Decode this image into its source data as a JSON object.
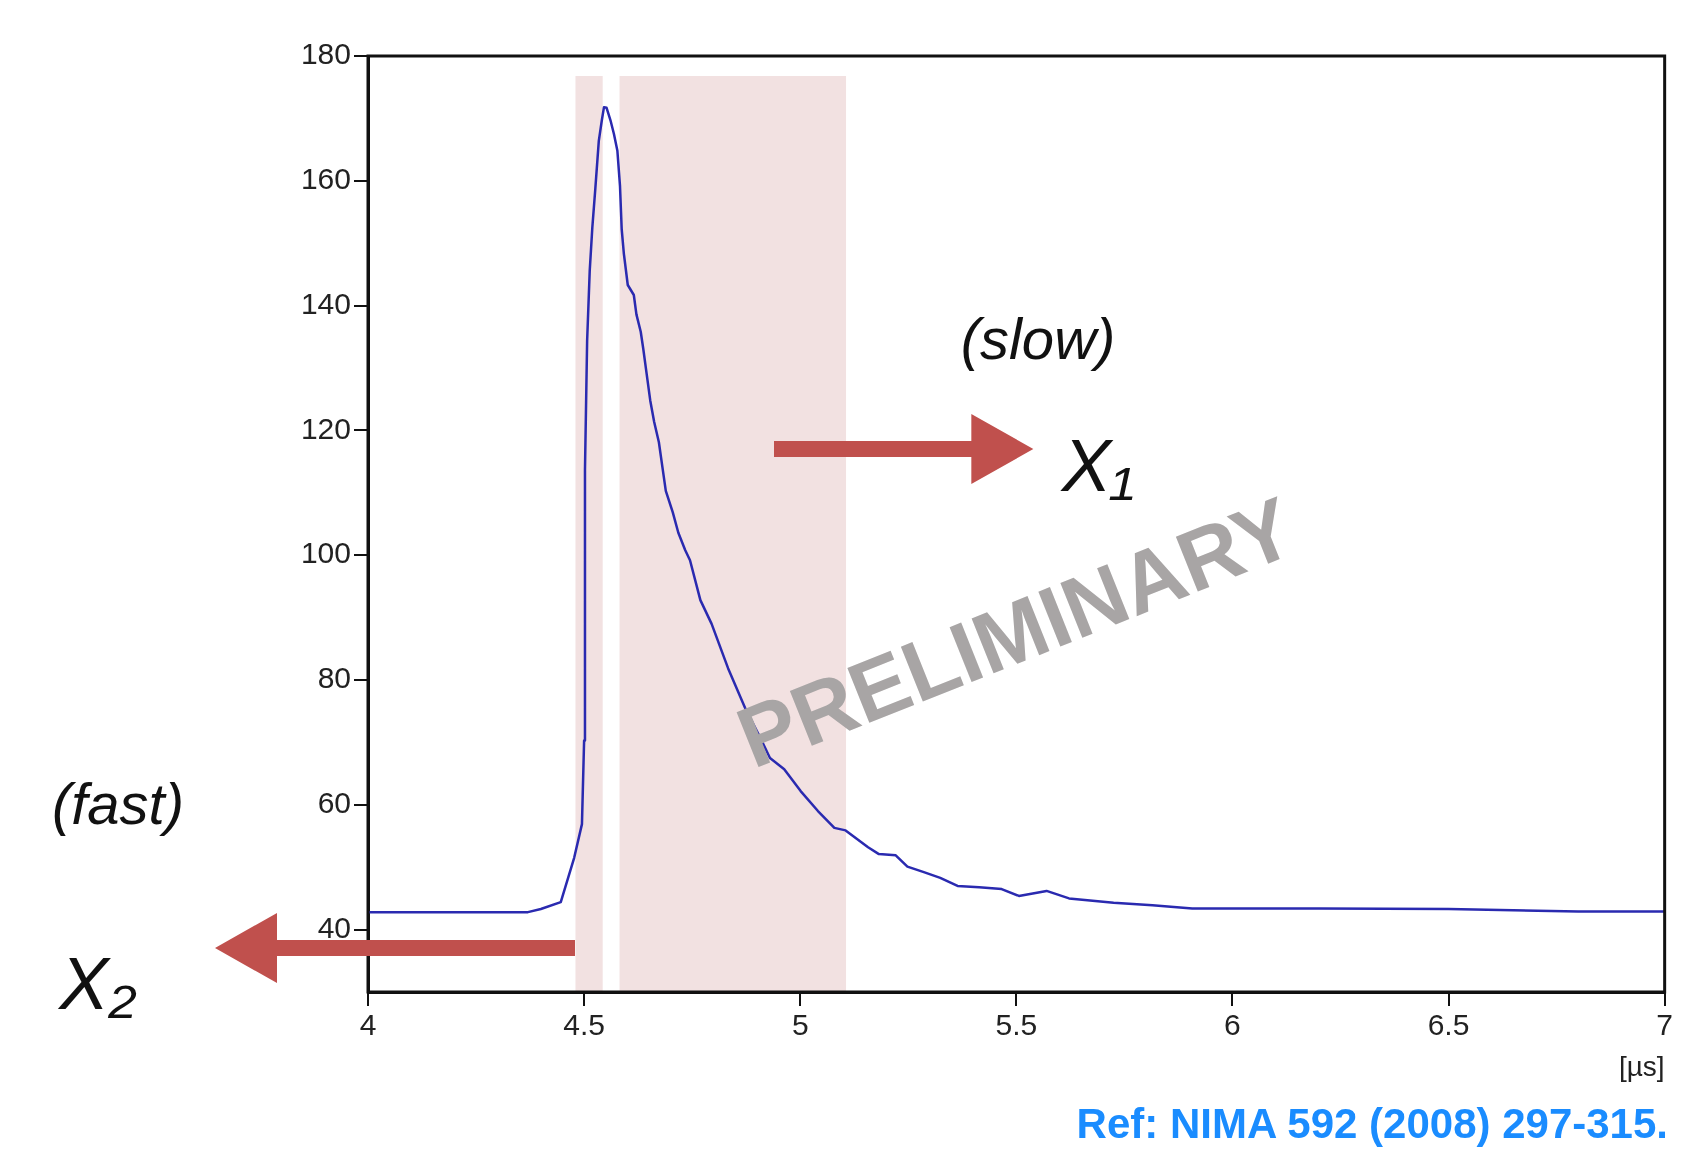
{
  "chart_data": {
    "type": "line",
    "xlabel": "[µs]",
    "x": [
      4.0,
      4.37,
      4.4,
      4.446,
      4.477,
      4.495,
      4.5,
      4.502,
      4.507,
      4.513,
      4.519,
      4.526,
      4.534,
      4.541,
      4.546,
      4.552,
      4.561,
      4.569,
      4.577,
      4.583,
      4.587,
      4.592,
      4.601,
      4.615,
      4.621,
      4.631,
      4.637,
      4.645,
      4.653,
      4.662,
      4.673,
      4.681,
      4.689,
      4.705,
      4.718,
      4.734,
      4.745,
      4.769,
      4.795,
      4.833,
      4.872,
      4.905,
      4.93,
      4.963,
      5.001,
      5.041,
      5.079,
      5.105,
      5.157,
      5.182,
      5.221,
      5.248,
      5.286,
      5.324,
      5.364,
      5.414,
      5.466,
      5.506,
      5.57,
      5.622,
      5.725,
      5.815,
      5.907,
      6.0,
      6.2,
      6.5,
      6.8,
      7.0
    ],
    "series": [
      {
        "color": "#2a2ab0",
        "values": [
          42.8,
          42.8,
          43.3,
          44.4,
          51.5,
          56.9,
          70.3,
          113.6,
          134.4,
          145.6,
          152.5,
          158.8,
          166.4,
          169.7,
          171.8,
          171.7,
          169.7,
          167.5,
          164.8,
          159.2,
          152.2,
          148.3,
          143.3,
          141.7,
          138.6,
          135.8,
          133,
          128.9,
          124.8,
          121.4,
          118.1,
          114.2,
          110.3,
          106.9,
          103.6,
          100.8,
          99.2,
          92.8,
          89,
          81.9,
          75.6,
          71.1,
          67.5,
          65.7,
          62.2,
          59,
          56.3,
          55.9,
          53.2,
          52.1,
          51.9,
          50.1,
          49.2,
          48.3,
          47,
          46.8,
          46.5,
          45.4,
          46.2,
          45,
          44.3,
          43.9,
          43.4,
          43.4,
          43.4,
          43.3,
          42.9,
          42.9
        ]
      }
    ],
    "xlim": [
      4,
      7
    ],
    "xticks": [
      4,
      4.5,
      5,
      5.5,
      6,
      6.5,
      7
    ],
    "ylim": [
      30,
      180
    ],
    "yticks": [
      40,
      60,
      80,
      100,
      120,
      140,
      160,
      180
    ],
    "bands": [
      {
        "axis": "x",
        "from": 4.48,
        "to": 4.543,
        "color": "#f2e1e1"
      },
      {
        "axis": "x",
        "from": 4.582,
        "to": 5.106,
        "color": "#f2e1e1"
      }
    ],
    "annotations": [
      "(slow)",
      "X₁",
      "(fast)",
      "X₂",
      "PRELIMINARY",
      "Ref: NIMA 592 (2008) 297-315."
    ],
    "grid": false,
    "legend": false,
    "marker": "none",
    "line_style": "solid"
  }
}
